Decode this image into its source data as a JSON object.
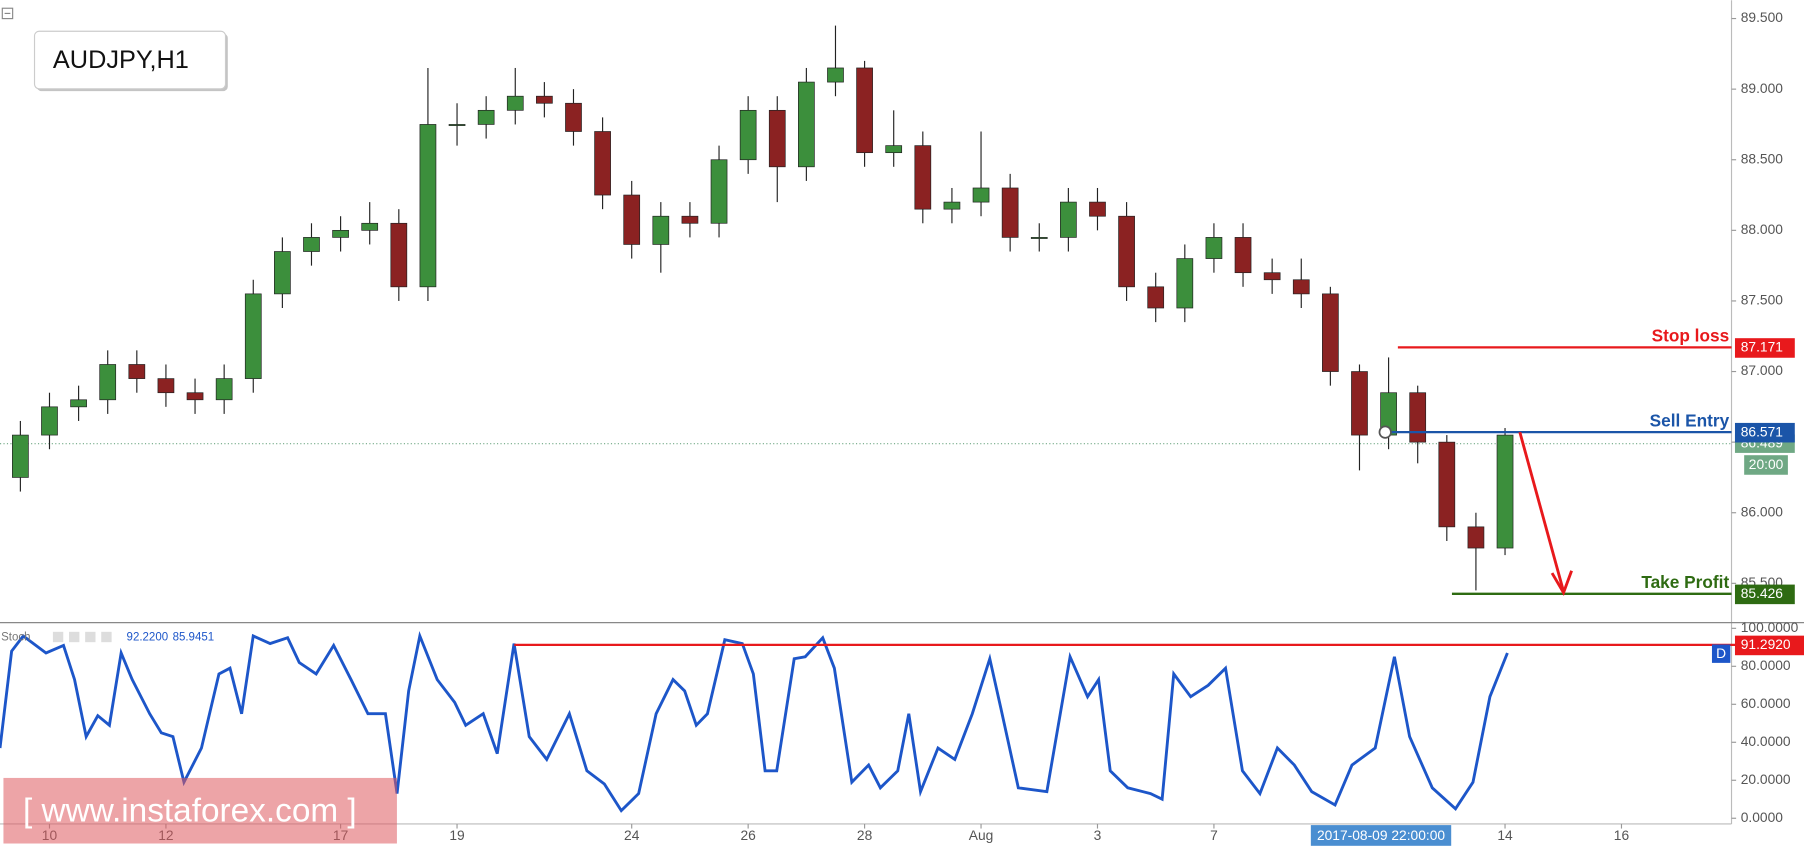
{
  "chart_data": [
    {
      "type": "candlestick",
      "title": "AUDJPY,H1",
      "up_color": "#3c8f3c",
      "down_color": "#8b2222",
      "x": [
        -0.5,
        0,
        0.5,
        1,
        1.5,
        2,
        2.5,
        3,
        3.5,
        4,
        4.5,
        5,
        5.5,
        6,
        6.5,
        7,
        7.5,
        8,
        8.5,
        9,
        9.5,
        10,
        10.5,
        11,
        11.5,
        12,
        12.5,
        13,
        13.5,
        14,
        14.5,
        15,
        15.5,
        16,
        16.5,
        17,
        17.5,
        18,
        18.5,
        19,
        19.5,
        20,
        20.5,
        21,
        21.5,
        22,
        22.5,
        23,
        23.5,
        24,
        24.5,
        25
      ],
      "open": [
        86.25,
        86.55,
        86.75,
        86.8,
        87.05,
        86.95,
        86.85,
        86.8,
        86.95,
        87.55,
        87.85,
        87.95,
        88.0,
        88.05,
        87.6,
        88.75,
        88.75,
        88.85,
        88.95,
        88.9,
        88.7,
        88.25,
        87.9,
        88.1,
        88.05,
        88.5,
        88.85,
        88.45,
        89.05,
        89.15,
        88.55,
        88.6,
        88.15,
        88.2,
        88.3,
        87.95,
        87.95,
        88.2,
        88.1,
        87.6,
        87.45,
        87.8,
        87.95,
        87.7,
        87.65,
        87.55,
        87.0,
        86.55,
        86.85,
        86.5,
        85.9,
        85.75
      ],
      "high": [
        86.65,
        86.85,
        86.9,
        87.15,
        87.15,
        87.05,
        86.95,
        87.05,
        87.65,
        87.95,
        88.05,
        88.1,
        88.2,
        88.15,
        89.15,
        88.9,
        88.95,
        89.15,
        89.05,
        89.0,
        88.8,
        88.35,
        88.2,
        88.2,
        88.6,
        88.95,
        88.95,
        89.15,
        89.45,
        89.2,
        88.85,
        88.7,
        88.3,
        88.7,
        88.4,
        88.05,
        88.3,
        88.3,
        88.2,
        87.7,
        87.9,
        88.05,
        88.05,
        87.8,
        87.8,
        87.6,
        87.05,
        87.1,
        86.9,
        86.55,
        86.0,
        86.6
      ],
      "low": [
        86.15,
        86.45,
        86.65,
        86.7,
        86.85,
        86.75,
        86.7,
        86.7,
        86.85,
        87.45,
        87.75,
        87.85,
        87.9,
        87.5,
        87.5,
        88.6,
        88.65,
        88.75,
        88.8,
        88.6,
        88.15,
        87.8,
        87.7,
        87.95,
        87.95,
        88.4,
        88.2,
        88.35,
        88.95,
        88.45,
        88.45,
        88.05,
        88.05,
        88.1,
        87.85,
        87.85,
        87.85,
        88.0,
        87.5,
        87.35,
        87.35,
        87.7,
        87.6,
        87.55,
        87.45,
        86.9,
        86.3,
        86.45,
        86.35,
        85.8,
        85.45,
        85.7
      ],
      "close": [
        86.55,
        86.75,
        86.8,
        87.05,
        86.95,
        86.85,
        86.8,
        86.95,
        87.55,
        87.85,
        87.95,
        88.0,
        88.05,
        87.6,
        88.75,
        88.75,
        88.85,
        88.95,
        88.9,
        88.7,
        88.25,
        87.9,
        88.1,
        88.05,
        88.5,
        88.85,
        88.45,
        89.05,
        89.15,
        88.55,
        88.6,
        88.15,
        88.2,
        88.3,
        87.95,
        87.95,
        88.2,
        88.1,
        87.6,
        87.45,
        87.8,
        87.95,
        87.7,
        87.65,
        87.55,
        87.0,
        86.55,
        86.85,
        86.5,
        85.9,
        85.75,
        86.55
      ],
      "xlim": [
        -0.85,
        28.89
      ],
      "xticks": [
        {
          "value": 0,
          "label": "10"
        },
        {
          "value": 2,
          "label": "12"
        },
        {
          "value": 5,
          "label": "17"
        },
        {
          "value": 7,
          "label": "19"
        },
        {
          "value": 10,
          "label": "24"
        },
        {
          "value": 12,
          "label": "26"
        },
        {
          "value": 14,
          "label": "28"
        },
        {
          "value": 16,
          "label": "Aug"
        },
        {
          "value": 18,
          "label": "3"
        },
        {
          "value": 20,
          "label": "7"
        },
        {
          "value": 25,
          "label": "14"
        },
        {
          "value": 27,
          "label": "16"
        }
      ],
      "crosshair": {
        "value": 22.87,
        "label": "2017-08-09 22:00:00"
      },
      "ylim": [
        85.23,
        89.63
      ],
      "yticks": [
        {
          "value": 85.5,
          "label": "85.500"
        },
        {
          "value": 86,
          "label": "86.000"
        },
        {
          "value": 86.5,
          "label": "86.500"
        },
        {
          "value": 87,
          "label": "87.000"
        },
        {
          "value": 87.5,
          "label": "87.500"
        },
        {
          "value": 88,
          "label": "88.000"
        },
        {
          "value": 88.5,
          "label": "88.500"
        },
        {
          "value": 89,
          "label": "89.000"
        },
        {
          "value": 89.5,
          "label": "89.500"
        }
      ],
      "levels": [
        {
          "name": "Stop loss",
          "value": 87.171,
          "color": "#e8191c"
        },
        {
          "name": "Sell Entry",
          "value": 86.571,
          "color": "#1b55a8"
        },
        {
          "name": "Take Profit",
          "value": 85.426,
          "color": "#2e6b12"
        }
      ],
      "last_price": 86.489,
      "last_price_color": "#6fa884",
      "countdown": "20:00",
      "watermark": "[ www.instaforex.com ]"
    },
    {
      "type": "line",
      "name": "Stoch",
      "color": "#1d56c9",
      "readouts": [
        {
          "value": 92.22,
          "label": "92.2200"
        },
        {
          "value": 85.9451,
          "label": "85.9451"
        }
      ],
      "x": [
        -0.85,
        -0.65,
        -0.45,
        -0.06,
        0.24,
        0.43,
        0.63,
        0.83,
        1.03,
        1.23,
        1.42,
        1.72,
        1.92,
        2.12,
        2.31,
        2.61,
        2.91,
        3.1,
        3.3,
        3.5,
        3.79,
        4.09,
        4.29,
        4.58,
        4.88,
        5.18,
        5.47,
        5.77,
        5.97,
        6.17,
        6.36,
        6.66,
        6.96,
        7.15,
        7.45,
        7.69,
        7.98,
        8.24,
        8.54,
        8.93,
        9.23,
        9.53,
        9.82,
        10.12,
        10.42,
        10.71,
        10.91,
        11.11,
        11.3,
        11.6,
        11.9,
        12.09,
        12.29,
        12.49,
        12.79,
        12.98,
        13.28,
        13.48,
        13.78,
        14.07,
        14.27,
        14.57,
        14.76,
        14.96,
        15.26,
        15.55,
        15.85,
        16.15,
        16.34,
        16.64,
        17.13,
        17.53,
        17.83,
        18.02,
        18.22,
        18.52,
        18.91,
        19.11,
        19.31,
        19.6,
        19.9,
        20.2,
        20.49,
        20.79,
        21.09,
        21.38,
        21.68,
        22.08,
        22.37,
        22.77,
        23.1,
        23.36,
        23.75,
        24.15,
        24.45,
        24.74,
        25.04
      ],
      "values": [
        37,
        88,
        96,
        87,
        91,
        73,
        43,
        54,
        49,
        87,
        73,
        55,
        45,
        43,
        19,
        37,
        76,
        79,
        55,
        96,
        92,
        95,
        82,
        76,
        91,
        73,
        55,
        55,
        13,
        67,
        96,
        73,
        61,
        49,
        55,
        34,
        92,
        43,
        31,
        55,
        25,
        18,
        4,
        13,
        55,
        73,
        67,
        49,
        55,
        94,
        92,
        76,
        25,
        25,
        84,
        85,
        95,
        79,
        19,
        28,
        16,
        25,
        55,
        14,
        37,
        31,
        55,
        84,
        58,
        16,
        14,
        85,
        64,
        73,
        25,
        16,
        13,
        10,
        76,
        64,
        70,
        79,
        25,
        13,
        37,
        28,
        14,
        7,
        28,
        37,
        85,
        43,
        16,
        5,
        19,
        64,
        87
      ],
      "ylim": [
        -3,
        103
      ],
      "yticks": [
        {
          "value": 0,
          "label": "0.0000"
        },
        {
          "value": 20,
          "label": "20.0000"
        },
        {
          "value": 40,
          "label": "40.0000"
        },
        {
          "value": 60,
          "label": "60.0000"
        },
        {
          "value": 80,
          "label": "80.0000"
        },
        {
          "value": 100,
          "label": "100.0000"
        }
      ],
      "level": {
        "value": 91.292,
        "label": "91.2920",
        "color": "#e8191c"
      },
      "badge": "D"
    }
  ]
}
